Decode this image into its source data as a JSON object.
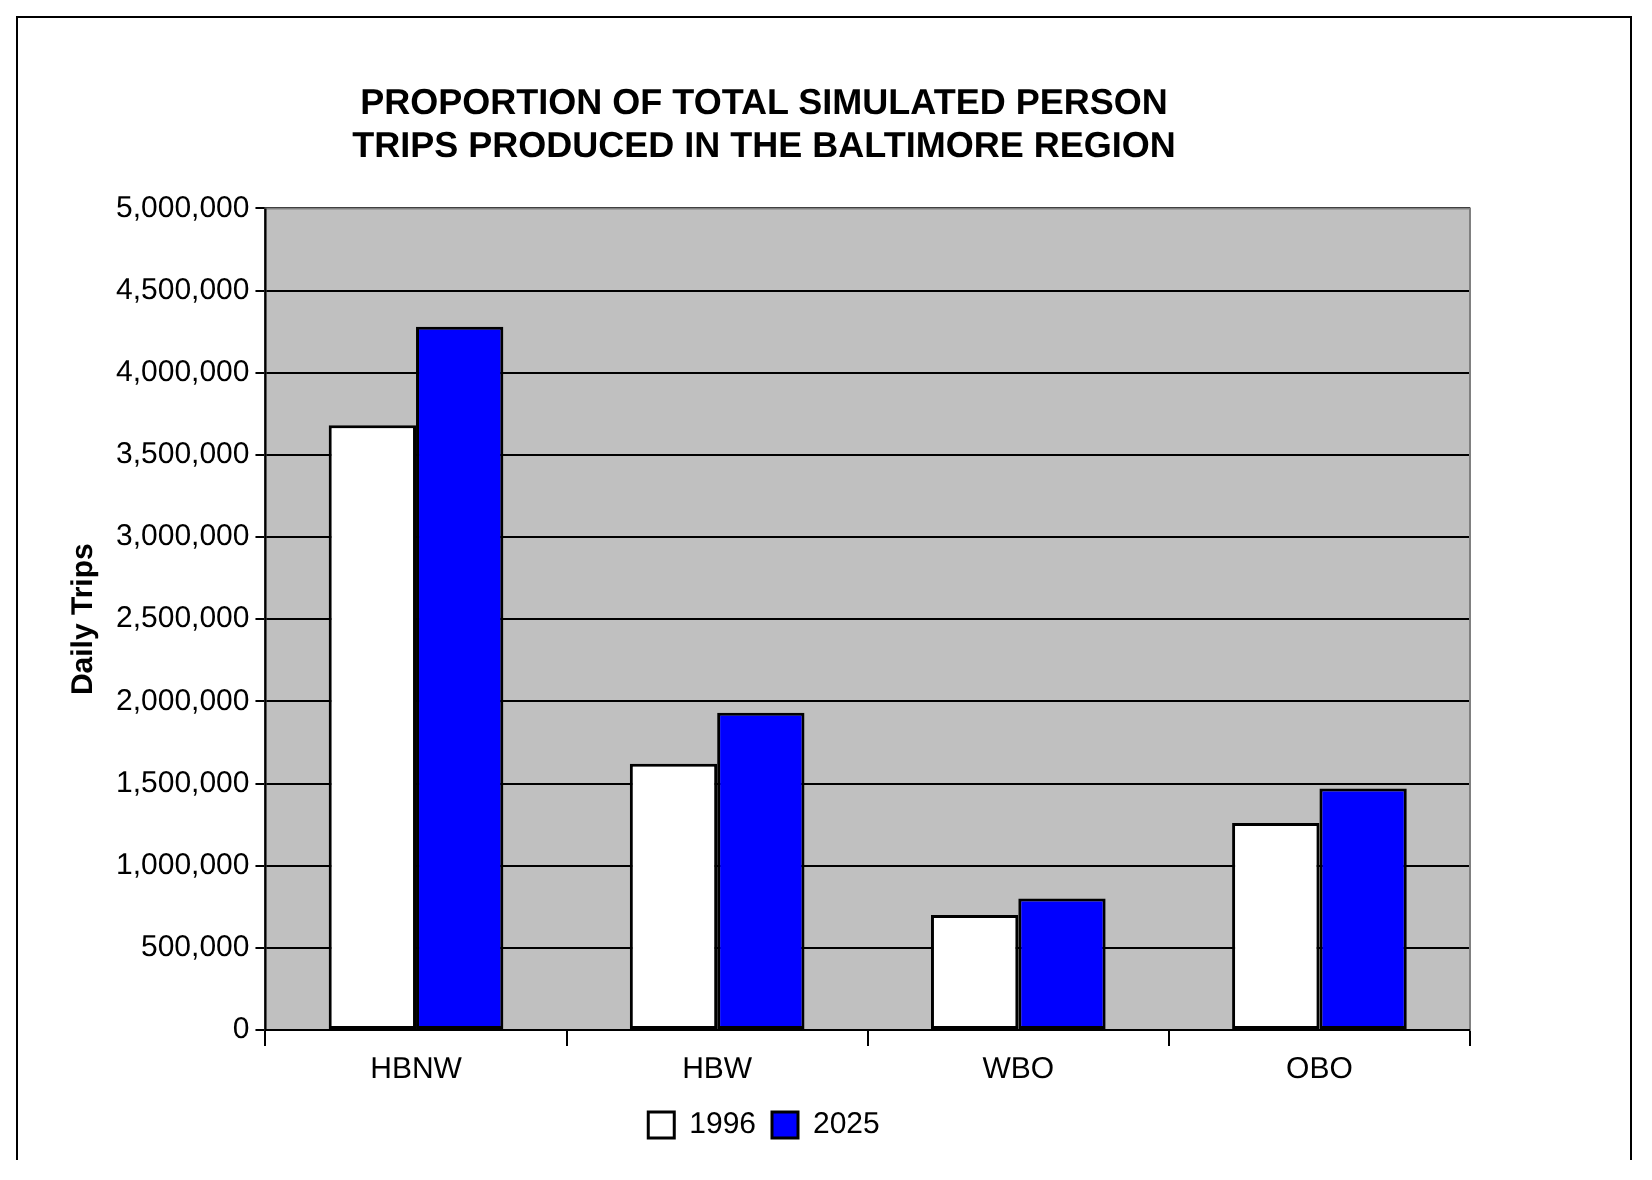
{
  "chart_data": {
    "type": "bar",
    "title": "PROPORTION OF TOTAL SIMULATED PERSON TRIPS PRODUCED IN THE BALTIMORE REGION",
    "ylabel": "Daily Trips",
    "categories": [
      "HBNW",
      "HBW",
      "WBO",
      "OBO"
    ],
    "series": [
      {
        "name": "1996",
        "color": "#ffffff",
        "values": [
          3680000,
          1620000,
          700000,
          1260000
        ]
      },
      {
        "name": "2025",
        "color": "#0000ff",
        "values": [
          4280000,
          1930000,
          800000,
          1470000
        ]
      }
    ],
    "ylim": [
      0,
      5000000
    ],
    "yticks": [
      {
        "value": 0,
        "label": "0"
      },
      {
        "value": 500000,
        "label": "500,000"
      },
      {
        "value": 1000000,
        "label": "1,000,000"
      },
      {
        "value": 1500000,
        "label": "1,500,000"
      },
      {
        "value": 2000000,
        "label": "2,000,000"
      },
      {
        "value": 2500000,
        "label": "2,500,000"
      },
      {
        "value": 3000000,
        "label": "3,000,000"
      },
      {
        "value": 3500000,
        "label": "3,500,000"
      },
      {
        "value": 4000000,
        "label": "4,000,000"
      },
      {
        "value": 4500000,
        "label": "4,500,000"
      },
      {
        "value": 5000000,
        "label": "5,000,000"
      }
    ],
    "grid": "y",
    "legend": "bottom"
  }
}
